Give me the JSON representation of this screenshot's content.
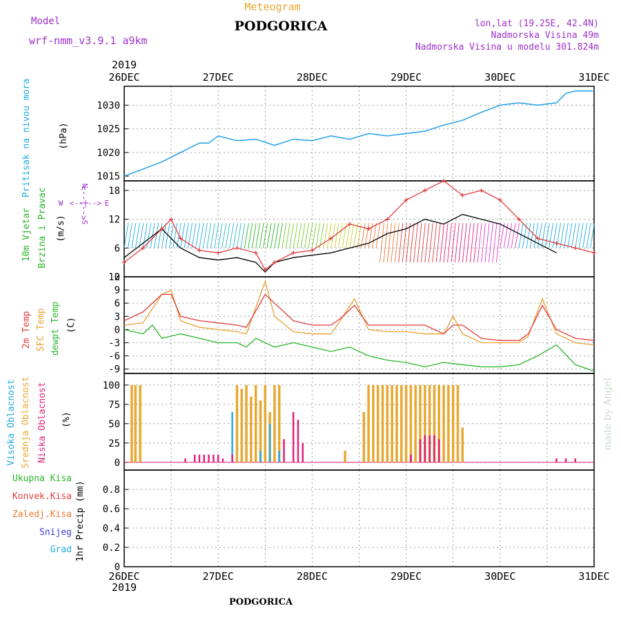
{
  "header": {
    "model_label": "Model",
    "model_name": "wrf-nmm_v3.9.1  a9km",
    "meteogram_label": "Meteogram",
    "city": "PODGORICA",
    "coords": "lon,lat (19.25E, 42.4N)",
    "elevation": "Nadmorska Visina 49m",
    "model_elevation": "Nadmorska Visina u modelu 301.824m",
    "footer_city": "PODGORICA",
    "made_by": "made by Angel"
  },
  "time_axis": {
    "year": "2019",
    "labels": [
      "26DEC",
      "27DEC",
      "28DEC",
      "29DEC",
      "30DEC",
      "31DEC"
    ],
    "days": [
      0,
      1,
      2,
      3,
      4,
      5
    ]
  },
  "colors": {
    "pressure": "#1ea0e6",
    "wind_line": "#000000",
    "gust": "#e03c3c",
    "temp2m": "#e03c3c",
    "sfc_temp": "#e8a030",
    "dewpt": "#28b428",
    "cloud_high": "#2aaae6",
    "cloud_mid": "#e8a830",
    "cloud_low": "#e0207a",
    "purple": "#9b30c8",
    "cyan_label": "#1eaadc"
  },
  "panels": {
    "pressure": {
      "label1": "Pritisak na nivou mora",
      "unit": "(hPa)",
      "ticks": [
        "1015",
        "1020",
        "1025",
        "1030"
      ]
    },
    "wind": {
      "label1": "10m Vjetar",
      "label2": "Brzina i Pravac",
      "unit": "(m/s)",
      "ticks": [
        "0",
        "6",
        "12",
        "18"
      ],
      "compass": {
        "n": "N",
        "s": "S",
        "w": "W",
        "e": "E",
        "arrow": "<--|-->"
      }
    },
    "temp": {
      "label1": "2m Temp",
      "label2": "SFC Temp",
      "label3": "dewpt Temp",
      "unit": "(C)",
      "ticks": [
        "-9",
        "-6",
        "-3",
        "0",
        "3",
        "6",
        "9",
        "12"
      ]
    },
    "cloud": {
      "label1": "Visoka Oblacnost",
      "label2": "Srednja Oblacnost",
      "label3": "Niska Oblacnost",
      "unit": "(%)",
      "ticks": [
        "0",
        "25",
        "50",
        "75",
        "100"
      ]
    },
    "precip": {
      "labels": [
        "Ukupna Kisa",
        "Konvek.Kisa",
        "Zaledj.Kisa",
        "Snijeg",
        "Grad"
      ],
      "label_colors": [
        "#28b428",
        "#e03c3c",
        "#e87830",
        "#3c3cdc",
        "#1eaadc"
      ],
      "unit": "1hr Precip (mm)",
      "ticks": [
        "0",
        "0.2",
        "0.4",
        "0.6",
        "0.8"
      ]
    }
  },
  "chart_data": [
    {
      "type": "line",
      "title": "Pritisak na nivou mora",
      "ylabel": "(hPa)",
      "ylim": [
        1014,
        1034
      ],
      "series": [
        {
          "name": "Pritisak na nivou mora",
          "x": [
            0,
            0.2,
            0.4,
            0.6,
            0.8,
            0.9,
            1.0,
            1.2,
            1.4,
            1.6,
            1.8,
            2.0,
            2.2,
            2.4,
            2.6,
            2.8,
            3.0,
            3.2,
            3.4,
            3.6,
            3.8,
            4.0,
            4.2,
            4.4,
            4.6,
            4.7,
            4.8,
            5.0
          ],
          "y": [
            1015,
            1016.5,
            1018,
            1020,
            1022,
            1022,
            1023.5,
            1022.5,
            1022.8,
            1021.5,
            1022.8,
            1022.5,
            1023.5,
            1022.8,
            1024,
            1023.5,
            1024,
            1024.5,
            1025.8,
            1026.8,
            1028.5,
            1030,
            1030.5,
            1030,
            1030.5,
            1032.5,
            1033,
            1033
          ]
        }
      ]
    },
    {
      "type": "line",
      "title": "10m Vjetar Brzina i Pravac",
      "ylabel": "(m/s)",
      "ylim": [
        0,
        20
      ],
      "series": [
        {
          "name": "wind",
          "x": [
            0,
            0.2,
            0.4,
            0.6,
            0.8,
            1.0,
            1.2,
            1.4,
            1.5,
            1.6,
            1.8,
            2.0,
            2.2,
            2.4,
            2.6,
            2.8,
            3.0,
            3.2,
            3.4,
            3.6,
            3.8,
            4.0,
            4.2,
            4.4,
            4.6
          ],
          "y": [
            4,
            7,
            10,
            6,
            4,
            3.5,
            4,
            3,
            1,
            3,
            4,
            4.5,
            5,
            6,
            7,
            9,
            10,
            12,
            11,
            13,
            12,
            11,
            9,
            7,
            5
          ]
        },
        {
          "name": "gust",
          "x": [
            0,
            0.2,
            0.4,
            0.5,
            0.6,
            0.8,
            1.0,
            1.2,
            1.4,
            1.5,
            1.6,
            1.8,
            2.0,
            2.2,
            2.4,
            2.6,
            2.8,
            3.0,
            3.2,
            3.4,
            3.6,
            3.8,
            4.0,
            4.2,
            4.4,
            4.6,
            4.8,
            5.0
          ],
          "y": [
            3,
            6,
            10,
            12,
            8,
            5.5,
            5,
            6,
            5,
            1.5,
            3,
            5,
            5.5,
            8,
            11,
            10,
            12,
            16,
            18,
            20,
            17,
            18,
            16,
            12,
            8,
            7,
            6,
            5
          ]
        }
      ]
    },
    {
      "type": "line",
      "title": "2m Temp / SFC Temp / dewpt Temp",
      "ylabel": "(C)",
      "ylim": [
        -10,
        12
      ],
      "series": [
        {
          "name": "2m Temp",
          "x": [
            0,
            0.2,
            0.4,
            0.5,
            0.6,
            0.8,
            1.0,
            1.2,
            1.3,
            1.5,
            1.6,
            1.8,
            2.0,
            2.2,
            2.3,
            2.45,
            2.6,
            2.8,
            3.0,
            3.2,
            3.4,
            3.5,
            3.6,
            3.8,
            4.0,
            4.2,
            4.3,
            4.45,
            4.6,
            4.8,
            5.0
          ],
          "y": [
            2,
            4,
            8,
            8,
            3,
            2,
            1.5,
            1,
            0.5,
            8,
            6,
            2,
            1,
            1,
            2.5,
            5.5,
            1,
            1,
            1,
            1,
            -1,
            1,
            1,
            -2,
            -2.5,
            -2.5,
            -1,
            5.5,
            0,
            -2,
            -2.5
          ]
        },
        {
          "name": "SFC Temp",
          "x": [
            0,
            0.2,
            0.4,
            0.5,
            0.6,
            0.8,
            1.0,
            1.2,
            1.3,
            1.5,
            1.6,
            1.8,
            2.0,
            2.2,
            2.3,
            2.45,
            2.6,
            2.8,
            3.0,
            3.2,
            3.4,
            3.5,
            3.6,
            3.8,
            4.0,
            4.2,
            4.3,
            4.45,
            4.6,
            4.8,
            5.0
          ],
          "y": [
            1,
            1.5,
            8,
            9,
            2,
            0.5,
            0,
            -0.5,
            -1,
            11,
            3,
            -0.5,
            -1,
            -1,
            2,
            7,
            0,
            -0.5,
            -0.5,
            -1,
            -1,
            3,
            -1,
            -3,
            -3,
            -3,
            -1.5,
            7,
            -1,
            -3,
            -3.5
          ]
        },
        {
          "name": "dewpt Temp",
          "x": [
            0,
            0.2,
            0.3,
            0.4,
            0.6,
            0.8,
            1.0,
            1.2,
            1.3,
            1.4,
            1.6,
            1.8,
            2.0,
            2.2,
            2.4,
            2.6,
            2.8,
            3.0,
            3.2,
            3.4,
            3.6,
            3.8,
            4.0,
            4.2,
            4.4,
            4.6,
            4.8,
            5.0
          ],
          "y": [
            0,
            -1,
            1,
            -2,
            -1,
            -2,
            -3,
            -3,
            -4,
            -2,
            -4,
            -3,
            -4,
            -5,
            -4,
            -6,
            -7,
            -7.5,
            -8.5,
            -7.5,
            -8,
            -8.5,
            -8.5,
            -8,
            -6,
            -3.5,
            -8,
            -9.5
          ]
        }
      ]
    },
    {
      "type": "bar",
      "title": "Oblacnost",
      "ylabel": "(%)",
      "ylim": [
        0,
        100
      ],
      "series": [
        {
          "name": "Visoka Oblacnost",
          "x": [
            1.15,
            1.45,
            1.55,
            1.65
          ],
          "values": [
            65,
            15,
            50,
            15
          ]
        },
        {
          "name": "Srednja Oblacnost",
          "x": [
            0.08,
            0.12,
            0.17,
            1.2,
            1.25,
            1.3,
            1.35,
            1.4,
            1.45,
            1.5,
            1.55,
            1.6,
            1.65,
            2.35,
            2.55,
            2.6,
            2.65,
            2.7,
            2.75,
            2.8,
            2.85,
            2.9,
            2.95,
            3.0,
            3.05,
            3.1,
            3.15,
            3.2,
            3.25,
            3.3,
            3.35,
            3.4,
            3.45,
            3.5,
            3.55,
            3.6
          ],
          "values": [
            100,
            100,
            100,
            100,
            95,
            100,
            85,
            100,
            80,
            100,
            65,
            100,
            100,
            15,
            65,
            100,
            100,
            100,
            100,
            100,
            100,
            100,
            100,
            100,
            100,
            100,
            100,
            100,
            100,
            100,
            100,
            100,
            100,
            100,
            100,
            45
          ]
        },
        {
          "name": "Niska Oblacnost",
          "x": [
            0.65,
            0.75,
            0.8,
            0.85,
            0.9,
            0.95,
            1.0,
            1.05,
            1.15,
            1.7,
            1.8,
            1.85,
            1.9,
            3.05,
            3.15,
            3.2,
            3.25,
            3.3,
            3.35,
            4.6,
            4.7,
            4.8
          ],
          "values": [
            5,
            10,
            10,
            10,
            10,
            10,
            10,
            5,
            10,
            30,
            65,
            55,
            25,
            10,
            30,
            35,
            35,
            35,
            30,
            5,
            5,
            5
          ]
        }
      ]
    },
    {
      "type": "bar",
      "title": "1hr Precip",
      "ylabel": "1hr Precip (mm)",
      "ylim": [
        0,
        1
      ],
      "series": [
        {
          "name": "Ukupna Kisa",
          "x": [],
          "values": []
        }
      ]
    }
  ]
}
